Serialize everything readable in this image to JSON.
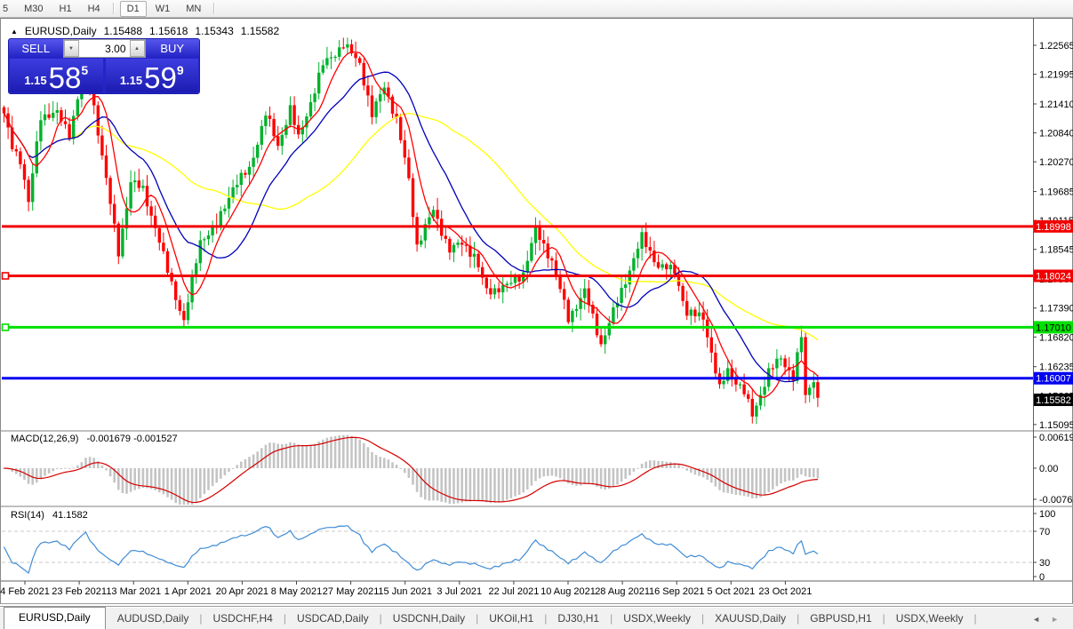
{
  "icons": {
    "collapse_arrow": "▲",
    "spin_down": "▼",
    "spin_up": "▲",
    "tab_prev": "◄",
    "tab_next": "►"
  },
  "toolbar": {
    "timeframes": [
      {
        "label": "5",
        "partial": true
      },
      {
        "label": "M30"
      },
      {
        "label": "H1"
      },
      {
        "label": "H4"
      },
      {
        "sep": true
      },
      {
        "label": "D1",
        "active": true
      },
      {
        "label": "W1"
      },
      {
        "label": "MN"
      },
      {
        "sep": true
      }
    ]
  },
  "chart_title": {
    "symbol": "EURUSD,Daily",
    "open": "1.15488",
    "high": "1.15618",
    "low": "1.15343",
    "close": "1.15582"
  },
  "trade_panel": {
    "sell_label": "SELL",
    "buy_label": "BUY",
    "volume": "3.00",
    "sell_price": {
      "prefix": "1.15",
      "big": "58",
      "sup": "5"
    },
    "buy_price": {
      "prefix": "1.15",
      "big": "59",
      "sup": "9"
    }
  },
  "price_axis": {
    "ticks": [
      {
        "label": "1.22565",
        "price": 1.22565
      },
      {
        "label": "1.21995",
        "price": 1.21995
      },
      {
        "label": "1.21410",
        "price": 1.2141
      },
      {
        "label": "1.20840",
        "price": 1.2084
      },
      {
        "label": "1.20270",
        "price": 1.2027
      },
      {
        "label": "1.19685",
        "price": 1.19685
      },
      {
        "label": "1.19115",
        "price": 1.19115
      },
      {
        "label": "1.18545",
        "price": 1.18545
      },
      {
        "label": "1.17960",
        "price": 1.1796
      },
      {
        "label": "1.17390",
        "price": 1.1739
      },
      {
        "label": "1.16820",
        "price": 1.1682
      },
      {
        "label": "1.16235",
        "price": 1.16235
      },
      {
        "label": "1.15665",
        "price": 1.15665
      },
      {
        "label": "1.15095",
        "price": 1.15095
      }
    ]
  },
  "hlines": [
    {
      "price": 1.18998,
      "label": "1.18998",
      "color": "#F20000",
      "text_color": "#ffffff",
      "handle": false
    },
    {
      "price": 1.18024,
      "label": "1.18024",
      "color": "#F20000",
      "text_color": "#ffffff",
      "handle": true
    },
    {
      "price": 1.1701,
      "label": "1.17010",
      "color": "#00E000",
      "text_color": "#000000",
      "handle": true
    },
    {
      "price": 1.16007,
      "label": "1.16007",
      "color": "#0000F0",
      "text_color": "#ffffff",
      "handle": false
    }
  ],
  "current_price": {
    "label": "1.15582",
    "price": 1.15582
  },
  "macd": {
    "name": "MACD(12,26,9)",
    "values": "-0.001679 -0.001527",
    "axis_labels": [
      "0.006193",
      "0.00",
      "-0.007621"
    ]
  },
  "rsi": {
    "name": "RSI(14)",
    "value": "41.1582",
    "axis_labels": [
      "100",
      "70",
      "30",
      "0"
    ],
    "levels": [
      70,
      30
    ]
  },
  "x_axis": {
    "labels": [
      "4 Feb 2021",
      "23 Feb 2021",
      "13 Mar 2021",
      "1 Apr 2021",
      "20 Apr 2021",
      "8 May 2021",
      "27 May 2021",
      "15 Jun 2021",
      "3 Jul 2021",
      "22 Jul 2021",
      "10 Aug 2021",
      "28 Aug 2021",
      "16 Sep 2021",
      "5 Oct 2021",
      "23 Oct 2021"
    ]
  },
  "tabs": {
    "items": [
      {
        "label": "EURUSD,Daily",
        "active": true
      },
      {
        "label": "AUDUSD,Daily"
      },
      {
        "label": "USDCHF,H4"
      },
      {
        "label": "USDCAD,Daily"
      },
      {
        "label": "USDCNH,Daily"
      },
      {
        "label": "UKOil,H1"
      },
      {
        "label": "DJ30,H1"
      },
      {
        "label": "USDX,Weekly"
      },
      {
        "label": "XAUUSD,Daily"
      },
      {
        "label": "GBPUSD,H1"
      },
      {
        "label": "USDX,Weekly"
      }
    ]
  },
  "colors": {
    "bull": "#00B22C",
    "bear": "#FF0000",
    "ma_fast": "#FF0000",
    "ma_mid": "#0000BB",
    "ma_slow": "#FFFF00",
    "macd_hist": "#C4C4C4",
    "macd_signal": "#D40000",
    "rsi_line": "#3F8CD5",
    "axis_text": "#000000",
    "level_dash": "#C9C9C9"
  },
  "chart_data": {
    "type": "candlestick",
    "symbol": "EURUSD",
    "timeframe": "Daily",
    "bar_count": 200,
    "y_axis_range": [
      1.15095,
      1.22565
    ],
    "ma_periods": {
      "fast": 7,
      "mid": 18,
      "slow": 45
    },
    "macd_params": [
      12,
      26,
      9
    ],
    "rsi_period": 14,
    "price_anchors": [
      [
        0,
        1.2118
      ],
      [
        2,
        1.2058
      ],
      [
        4,
        1.2032
      ],
      [
        6,
        1.1945
      ],
      [
        9,
        1.2118
      ],
      [
        13,
        1.2122
      ],
      [
        16,
        1.2082
      ],
      [
        18,
        1.2152
      ],
      [
        20,
        1.2228
      ],
      [
        23,
        1.2088
      ],
      [
        28,
        1.1848
      ],
      [
        31,
        1.1988
      ],
      [
        34,
        1.1972
      ],
      [
        37,
        1.1898
      ],
      [
        40,
        1.1812
      ],
      [
        44,
        1.1712
      ],
      [
        48,
        1.1872
      ],
      [
        52,
        1.1902
      ],
      [
        56,
        1.1978
      ],
      [
        60,
        1.2012
      ],
      [
        64,
        1.2122
      ],
      [
        67,
        1.2058
      ],
      [
        70,
        1.2132
      ],
      [
        72,
        1.2072
      ],
      [
        78,
        1.2218
      ],
      [
        83,
        1.2258
      ],
      [
        87,
        1.2222
      ],
      [
        90,
        1.2118
      ],
      [
        93,
        1.2178
      ],
      [
        96,
        1.2108
      ],
      [
        99,
        1.1992
      ],
      [
        101,
        1.1862
      ],
      [
        105,
        1.1932
      ],
      [
        109,
        1.1852
      ],
      [
        112,
        1.1868
      ],
      [
        115,
        1.1842
      ],
      [
        118,
        1.1772
      ],
      [
        123,
        1.1782
      ],
      [
        127,
        1.1808
      ],
      [
        130,
        1.1892
      ],
      [
        134,
        1.1832
      ],
      [
        138,
        1.1718
      ],
      [
        142,
        1.1772
      ],
      [
        146,
        1.1668
      ],
      [
        150,
        1.1752
      ],
      [
        156,
        1.1878
      ],
      [
        160,
        1.1822
      ],
      [
        164,
        1.1812
      ],
      [
        167,
        1.1728
      ],
      [
        171,
        1.1722
      ],
      [
        175,
        1.1578
      ],
      [
        177,
        1.1618
      ],
      [
        181,
        1.1572
      ],
      [
        183,
        1.1528
      ],
      [
        187,
        1.1612
      ],
      [
        190,
        1.1642
      ],
      [
        193,
        1.1602
      ],
      [
        195,
        1.1682
      ],
      [
        196,
        1.1565
      ],
      [
        198,
        1.1602
      ],
      [
        199,
        1.1558
      ]
    ]
  }
}
